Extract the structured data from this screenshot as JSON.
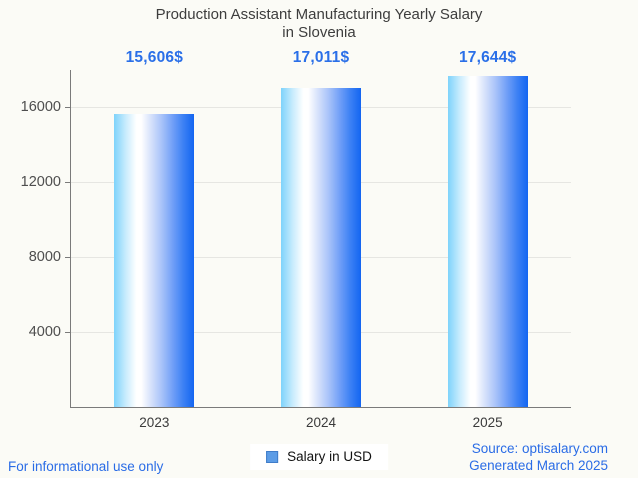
{
  "header": {
    "title_line1": "Production Assistant Manufacturing Yearly Salary",
    "title_line2": "in Slovenia"
  },
  "chart_data": {
    "type": "bar",
    "title": "Production Assistant Manufacturing Yearly Salary in Slovenia",
    "categories": [
      "2023",
      "2024",
      "2025"
    ],
    "values": [
      15606,
      17011,
      17644
    ],
    "value_labels": [
      "15,606$",
      "17,011$",
      "17,644$"
    ],
    "xlabel": "",
    "ylabel": "",
    "yticks": [
      4000,
      8000,
      12000,
      16000
    ],
    "ylim": [
      0,
      17973
    ],
    "grid": true,
    "legend": {
      "label": "Salary in USD",
      "position": "bottom-center",
      "marker_color": "#5c9ce6",
      "marker_border": "#3f7cc9"
    },
    "colors": {
      "bar_gradient_left": "#7ed3fb",
      "bar_gradient_mid": "#ffffff",
      "bar_gradient_right": "#1365f1",
      "value_label": "#2a6fe8",
      "axis": "#7a7a7a",
      "gridline": "#e6e6e2",
      "background": "#fbfbf6"
    }
  },
  "footer": {
    "left": "For informational use only",
    "source": "Source: optisalary.com",
    "generated": "Generated March 2025"
  }
}
